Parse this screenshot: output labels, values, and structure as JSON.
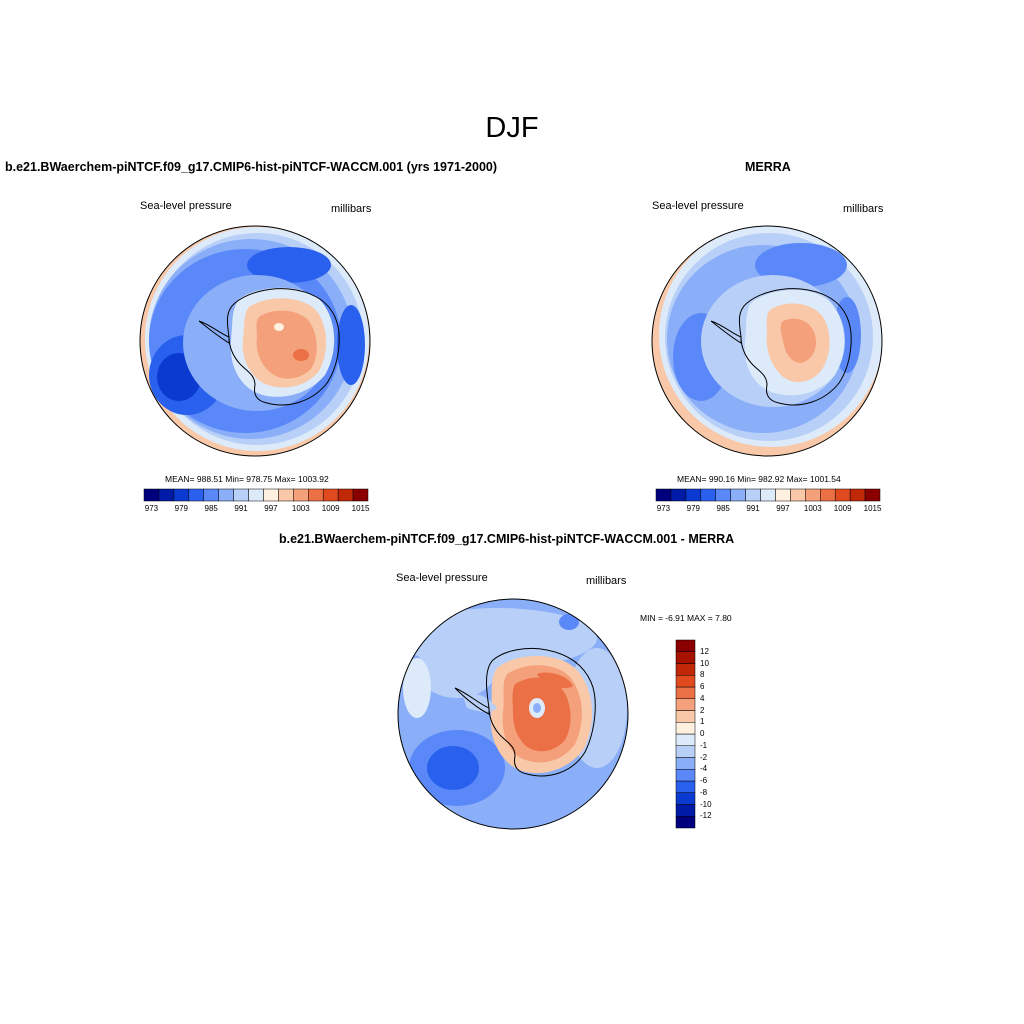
{
  "figure": {
    "title": "DJF"
  },
  "panels": {
    "model": {
      "title": "b.e21.BWaerchem-piNTCF.f09_g17.CMIP6-hist-piNTCF-WACCM.001 (yrs 1971-2000)",
      "variable": "Sea-level pressure",
      "units": "millibars",
      "stats": "MEAN= 988.51   Min= 978.75   Max= 1003.92"
    },
    "obs": {
      "title": "MERRA",
      "variable": "Sea-level pressure",
      "units": "millibars",
      "stats": "MEAN= 990.16   Min= 982.92   Max= 1001.54"
    },
    "diff": {
      "title": "b.e21.BWaerchem-piNTCF.f09_g17.CMIP6-hist-piNTCF-WACCM.001 - MERRA",
      "variable": "Sea-level pressure",
      "units": "millibars",
      "stats": "MIN =  -6.91 MAX =   7.80"
    }
  },
  "colorbars": {
    "field": {
      "colors": [
        "#00007f",
        "#001aa8",
        "#0a3ad0",
        "#2a60ee",
        "#5a88f8",
        "#8aaff8",
        "#b8cff8",
        "#dceafa",
        "#fff0e0",
        "#f8c8a8",
        "#f4a07a",
        "#ec7046",
        "#e04a1e",
        "#c02808",
        "#8a0000"
      ],
      "tick_labels": [
        "973",
        "979",
        "985",
        "991",
        "997",
        "1003",
        "1009",
        "1015"
      ]
    },
    "diff": {
      "colors": [
        "#00007f",
        "#001aa8",
        "#0a3ad0",
        "#2a60ee",
        "#5a88f8",
        "#8aaff8",
        "#b8cff8",
        "#dceafa",
        "#fff0e0",
        "#f8c8a8",
        "#f4a07a",
        "#ec7046",
        "#e04a1e",
        "#c02808",
        "#a81200",
        "#8a0000"
      ],
      "tick_labels": [
        "12",
        "10",
        "8",
        "6",
        "4",
        "2",
        "1",
        "0",
        "-1",
        "-2",
        "-4",
        "-6",
        "-8",
        "-10",
        "-12"
      ]
    }
  }
}
